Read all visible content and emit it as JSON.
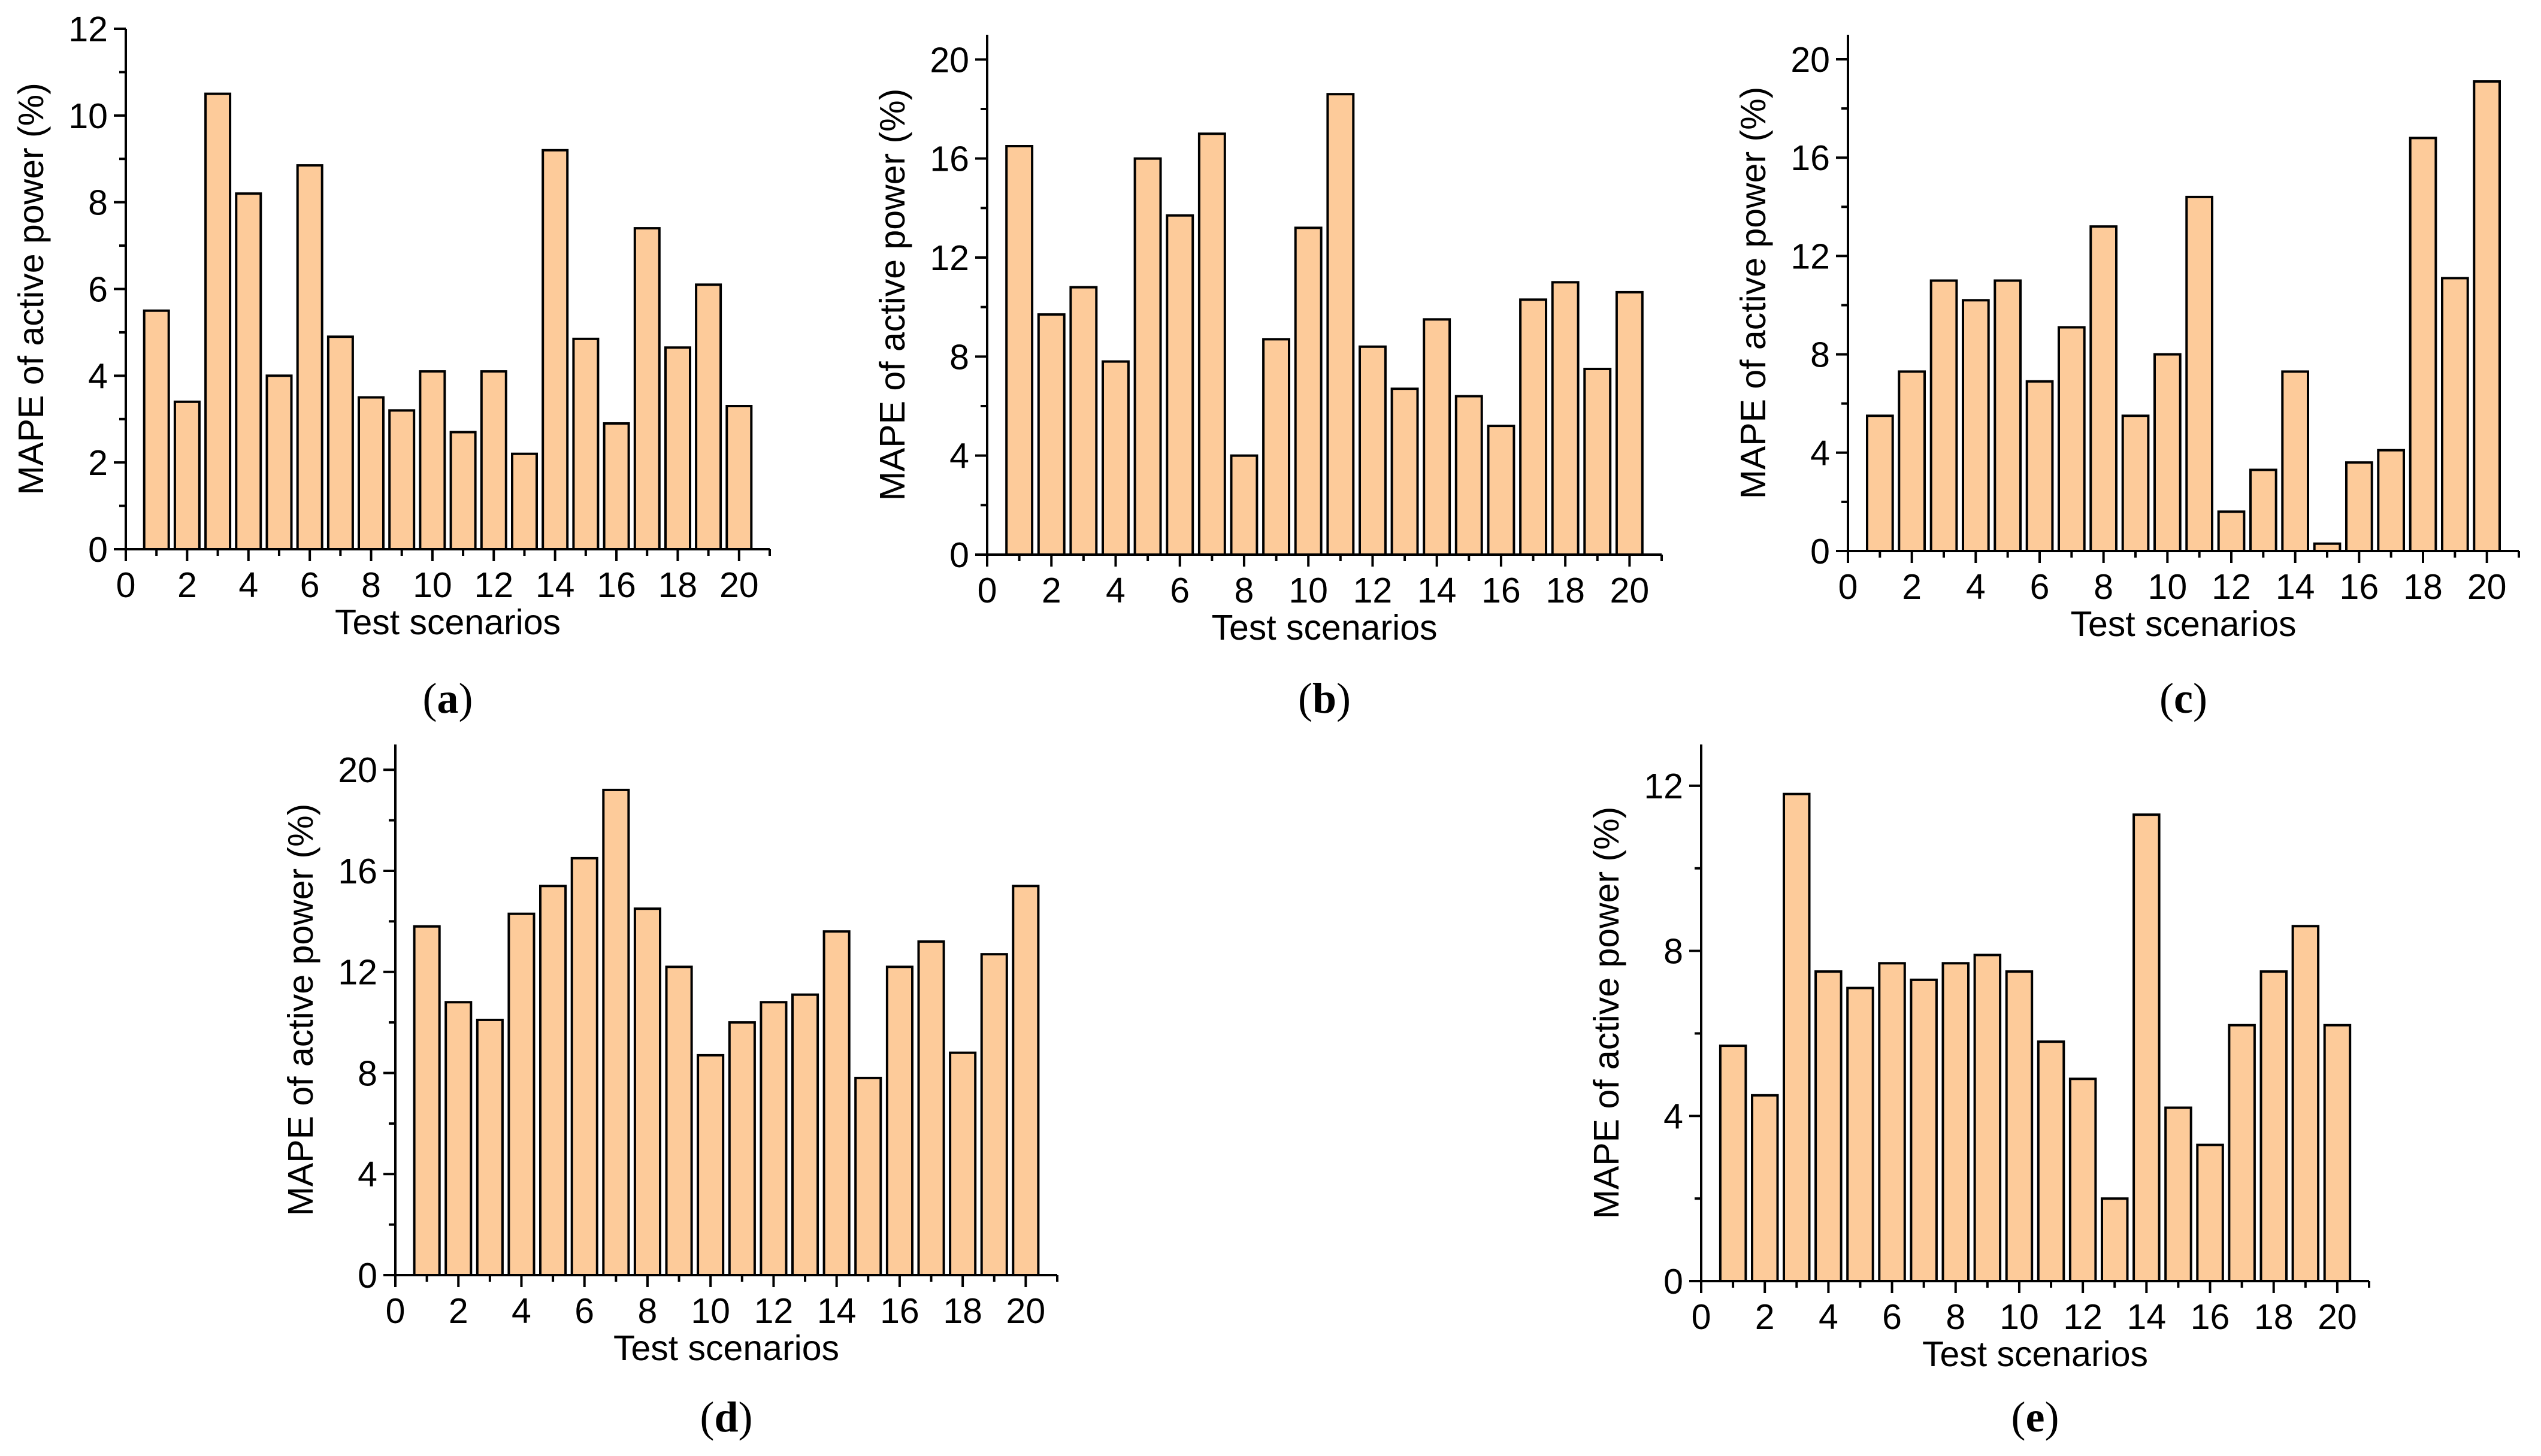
{
  "chart_data": [
    {
      "panel": "a",
      "panel_label": {
        "open": "(",
        "letter": "a",
        "close": ")"
      },
      "type": "bar",
      "xlabel": "Test scenarios",
      "ylabel": "MAPE of active power (%)",
      "xlim": [
        0,
        21
      ],
      "ylim": [
        0,
        12
      ],
      "xticks": [
        0,
        2,
        4,
        6,
        8,
        10,
        12,
        14,
        16,
        18,
        20
      ],
      "xtick_labels": [
        "0",
        "2",
        "4",
        "6",
        "8",
        "10",
        "12",
        "14",
        "16",
        "18",
        "20"
      ],
      "yticks": [
        0,
        2,
        4,
        6,
        8,
        10,
        12
      ],
      "ytick_labels": [
        "0",
        "2",
        "4",
        "6",
        "8",
        "10",
        "12"
      ],
      "x": [
        1,
        2,
        3,
        4,
        5,
        6,
        7,
        8,
        9,
        10,
        11,
        12,
        13,
        14,
        15,
        16,
        17,
        18,
        19,
        20
      ],
      "values": [
        5.5,
        3.4,
        10.5,
        8.2,
        4.0,
        8.85,
        4.9,
        3.5,
        3.2,
        4.1,
        2.7,
        4.1,
        2.2,
        9.2,
        4.85,
        2.9,
        7.4,
        4.65,
        6.1,
        3.3
      ],
      "bar_color": "#fdcb9a",
      "edge_color": "#000000"
    },
    {
      "panel": "b",
      "panel_label": {
        "open": "(",
        "letter": "b",
        "close": ")"
      },
      "type": "bar",
      "xlabel": "Test scenarios",
      "ylabel": "MAPE of active power (%)",
      "xlim": [
        0,
        21
      ],
      "ylim": [
        0,
        21
      ],
      "xticks": [
        0,
        2,
        4,
        6,
        8,
        10,
        12,
        14,
        16,
        18,
        20
      ],
      "xtick_labels": [
        "0",
        "2",
        "4",
        "6",
        "8",
        "10",
        "12",
        "14",
        "16",
        "18",
        "20"
      ],
      "yticks": [
        0,
        4,
        8,
        12,
        16,
        20
      ],
      "ytick_labels": [
        "0",
        "4",
        "8",
        "12",
        "16",
        "20"
      ],
      "x": [
        1,
        2,
        3,
        4,
        5,
        6,
        7,
        8,
        9,
        10,
        11,
        12,
        13,
        14,
        15,
        16,
        17,
        18,
        19,
        20
      ],
      "values": [
        16.5,
        9.7,
        10.8,
        7.8,
        16.0,
        13.7,
        17.0,
        4.0,
        8.7,
        13.2,
        18.6,
        8.4,
        6.7,
        9.5,
        6.4,
        5.2,
        10.3,
        11.0,
        7.5,
        10.6
      ],
      "bar_color": "#fdcb9a",
      "edge_color": "#000000"
    },
    {
      "panel": "c",
      "panel_label": {
        "open": "(",
        "letter": "c",
        "close": ")"
      },
      "type": "bar",
      "xlabel": "Test scenarios",
      "ylabel": "MAPE of active power (%)",
      "xlim": [
        0,
        21
      ],
      "ylim": [
        0,
        21
      ],
      "xticks": [
        0,
        2,
        4,
        6,
        8,
        10,
        12,
        14,
        16,
        18,
        20
      ],
      "xtick_labels": [
        "0",
        "2",
        "4",
        "6",
        "8",
        "10",
        "12",
        "14",
        "16",
        "18",
        "20"
      ],
      "yticks": [
        0,
        4,
        8,
        12,
        16,
        20
      ],
      "ytick_labels": [
        "0",
        "4",
        "8",
        "12",
        "16",
        "20"
      ],
      "x": [
        1,
        2,
        3,
        4,
        5,
        6,
        7,
        8,
        9,
        10,
        11,
        12,
        13,
        14,
        15,
        16,
        17,
        18,
        19,
        20
      ],
      "values": [
        5.5,
        7.3,
        11.0,
        10.2,
        11.0,
        6.9,
        9.1,
        13.2,
        5.5,
        8.0,
        14.4,
        1.6,
        3.3,
        7.3,
        0.3,
        3.6,
        4.1,
        16.8,
        11.1,
        19.1
      ],
      "bar_color": "#fdcb9a",
      "edge_color": "#000000"
    },
    {
      "panel": "d",
      "panel_label": {
        "open": "(",
        "letter": "d",
        "close": ")"
      },
      "type": "bar",
      "xlabel": "Test scenarios",
      "ylabel": "MAPE of active power (%)",
      "xlim": [
        0,
        21
      ],
      "ylim": [
        0,
        21
      ],
      "xticks": [
        0,
        2,
        4,
        6,
        8,
        10,
        12,
        14,
        16,
        18,
        20
      ],
      "xtick_labels": [
        "0",
        "2",
        "4",
        "6",
        "8",
        "10",
        "12",
        "14",
        "16",
        "18",
        "20"
      ],
      "yticks": [
        0,
        4,
        8,
        12,
        16,
        20
      ],
      "ytick_labels": [
        "0",
        "4",
        "8",
        "12",
        "16",
        "20"
      ],
      "x": [
        1,
        2,
        3,
        4,
        5,
        6,
        7,
        8,
        9,
        10,
        11,
        12,
        13,
        14,
        15,
        16,
        17,
        18,
        19,
        20
      ],
      "values": [
        13.8,
        10.8,
        10.1,
        14.3,
        15.4,
        16.5,
        19.2,
        14.5,
        12.2,
        8.7,
        10.0,
        10.8,
        11.1,
        13.6,
        7.8,
        12.2,
        13.2,
        8.8,
        12.7,
        15.4
      ],
      "bar_color": "#fdcb9a",
      "edge_color": "#000000"
    },
    {
      "panel": "e",
      "panel_label": {
        "open": "(",
        "letter": "e",
        "close": ")"
      },
      "type": "bar",
      "xlabel": "Test scenarios",
      "ylabel": "MAPE of active power (%)",
      "xlim": [
        0,
        21
      ],
      "ylim": [
        0,
        13
      ],
      "xticks": [
        0,
        2,
        4,
        6,
        8,
        10,
        12,
        14,
        16,
        18,
        20
      ],
      "xtick_labels": [
        "0",
        "2",
        "4",
        "6",
        "8",
        "10",
        "12",
        "14",
        "16",
        "18",
        "20"
      ],
      "yticks": [
        0,
        4,
        8,
        12
      ],
      "ytick_labels": [
        "0",
        "4",
        "8",
        "12"
      ],
      "x": [
        1,
        2,
        3,
        4,
        5,
        6,
        7,
        8,
        9,
        10,
        11,
        12,
        13,
        14,
        15,
        16,
        17,
        18,
        19,
        20
      ],
      "values": [
        5.7,
        4.5,
        11.8,
        7.5,
        7.1,
        7.7,
        7.3,
        7.7,
        7.9,
        7.5,
        5.8,
        4.9,
        2.0,
        11.3,
        4.2,
        3.3,
        6.2,
        7.5,
        8.6,
        6.2
      ],
      "bar_color": "#fdcb9a",
      "edge_color": "#000000"
    }
  ]
}
